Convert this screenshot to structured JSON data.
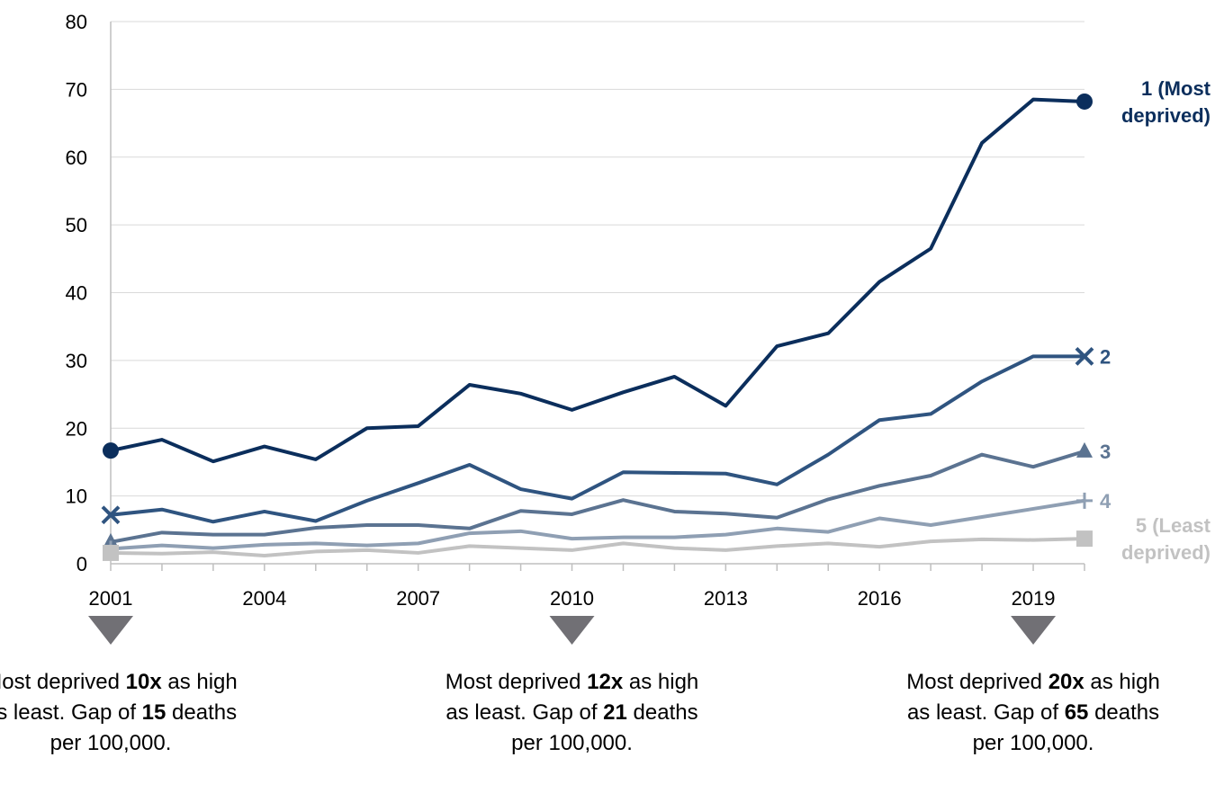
{
  "chart_data": {
    "type": "line",
    "title": "",
    "xlabel": "",
    "ylabel": "",
    "x": [
      2001,
      2002,
      2003,
      2004,
      2005,
      2006,
      2007,
      2008,
      2009,
      2010,
      2011,
      2012,
      2013,
      2014,
      2015,
      2016,
      2017,
      2018,
      2019,
      2020
    ],
    "xticks": [
      "2001",
      "2004",
      "2007",
      "2010",
      "2013",
      "2016",
      "2019"
    ],
    "yticks": [
      "0",
      "10",
      "20",
      "30",
      "40",
      "50",
      "60",
      "70",
      "80"
    ],
    "ylim": [
      0,
      80
    ],
    "grid": true,
    "series": [
      {
        "name": "1 (Most deprived)",
        "label_lines": [
          "1 (Most",
          "deprived)"
        ],
        "color": "#0b2e5c",
        "marker": "circle",
        "values": [
          16.7,
          18.3,
          15.1,
          17.3,
          15.4,
          20.0,
          20.3,
          26.4,
          25.1,
          22.7,
          25.3,
          27.6,
          23.3,
          32.1,
          34.0,
          41.6,
          46.5,
          62.1,
          68.5,
          68.2
        ]
      },
      {
        "name": "2",
        "label_lines": [
          "2"
        ],
        "color": "#2f5480",
        "marker": "x",
        "values": [
          7.2,
          8.0,
          6.2,
          7.7,
          6.3,
          9.3,
          11.9,
          14.6,
          11.0,
          9.6,
          13.5,
          13.4,
          13.3,
          11.7,
          16.1,
          21.2,
          22.1,
          26.9,
          30.6,
          30.6
        ]
      },
      {
        "name": "3",
        "label_lines": [
          "3"
        ],
        "color": "#5b7391",
        "marker": "triangle",
        "values": [
          3.2,
          4.6,
          4.3,
          4.3,
          5.3,
          5.7,
          5.7,
          5.2,
          7.8,
          7.3,
          9.4,
          7.7,
          7.4,
          6.8,
          9.5,
          11.5,
          13.0,
          16.1,
          14.3,
          16.6
        ]
      },
      {
        "name": "4",
        "label_lines": [
          "4"
        ],
        "color": "#8f9fb3",
        "marker": "plus",
        "values": [
          2.2,
          2.7,
          2.3,
          2.8,
          3.0,
          2.7,
          3.0,
          4.5,
          4.8,
          3.7,
          3.9,
          3.9,
          4.3,
          5.2,
          4.7,
          6.7,
          5.7,
          6.9,
          8.1,
          9.3
        ]
      },
      {
        "name": "5 (Least deprived)",
        "label_lines": [
          "5 (Least",
          "deprived)"
        ],
        "color": "#c2c2c2",
        "marker": "square",
        "values": [
          1.6,
          1.5,
          1.7,
          1.2,
          1.8,
          2.0,
          1.6,
          2.6,
          2.3,
          2.0,
          3.0,
          2.3,
          2.0,
          2.6,
          3.0,
          2.5,
          3.3,
          3.6,
          3.5,
          3.7
        ]
      }
    ],
    "annotations": [
      {
        "year": 2001,
        "parts": [
          [
            "Most deprived ",
            false
          ],
          [
            "10x",
            true
          ],
          [
            " as high as least. Gap of ",
            false
          ],
          [
            "15",
            true
          ],
          [
            " deaths per 100,000.",
            false
          ]
        ]
      },
      {
        "year": 2010,
        "parts": [
          [
            "Most deprived ",
            false
          ],
          [
            "12x",
            true
          ],
          [
            " as high as least. Gap of ",
            false
          ],
          [
            "21",
            true
          ],
          [
            " deaths per 100,000.",
            false
          ]
        ]
      },
      {
        "year": 2019,
        "parts": [
          [
            "Most deprived ",
            false
          ],
          [
            "20x",
            true
          ],
          [
            " as high as least. Gap of ",
            false
          ],
          [
            "65",
            true
          ],
          [
            " deaths per 100,000.",
            false
          ]
        ]
      }
    ],
    "annotation_marker_color": "#717075"
  }
}
